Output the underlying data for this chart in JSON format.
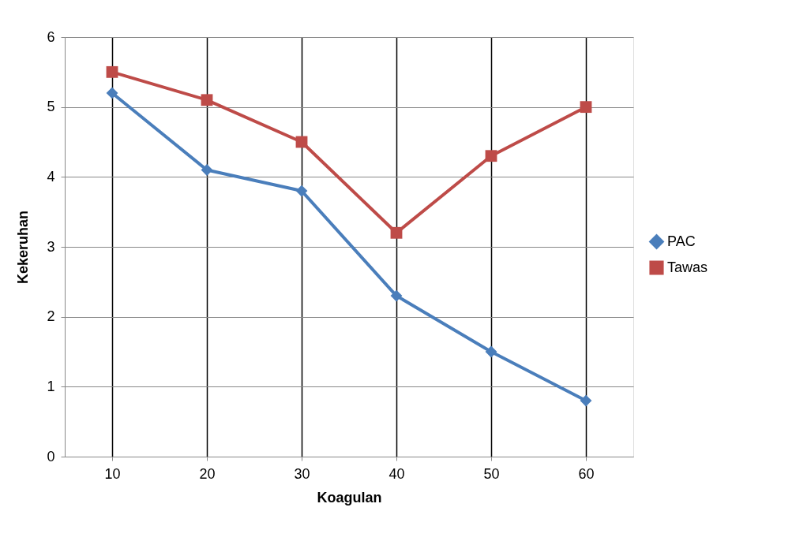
{
  "chart_data": {
    "type": "line",
    "xlabel": "Koagulan",
    "ylabel": "Kekeruhan",
    "categories": [
      "10",
      "20",
      "30",
      "40",
      "50",
      "60"
    ],
    "series": [
      {
        "name": "PAC",
        "color": "#4a7ebb",
        "marker": "diamond",
        "values": [
          5.2,
          4.1,
          3.8,
          2.3,
          1.5,
          0.8
        ]
      },
      {
        "name": "Tawas",
        "color": "#be4b48",
        "marker": "square",
        "values": [
          5.5,
          5.1,
          4.5,
          3.2,
          4.3,
          5.0
        ]
      }
    ],
    "ylim": [
      0,
      6
    ],
    "yticks": [
      0,
      1,
      2,
      3,
      4,
      5,
      6
    ],
    "grid": true,
    "legend": "right",
    "line_style": "solid"
  }
}
